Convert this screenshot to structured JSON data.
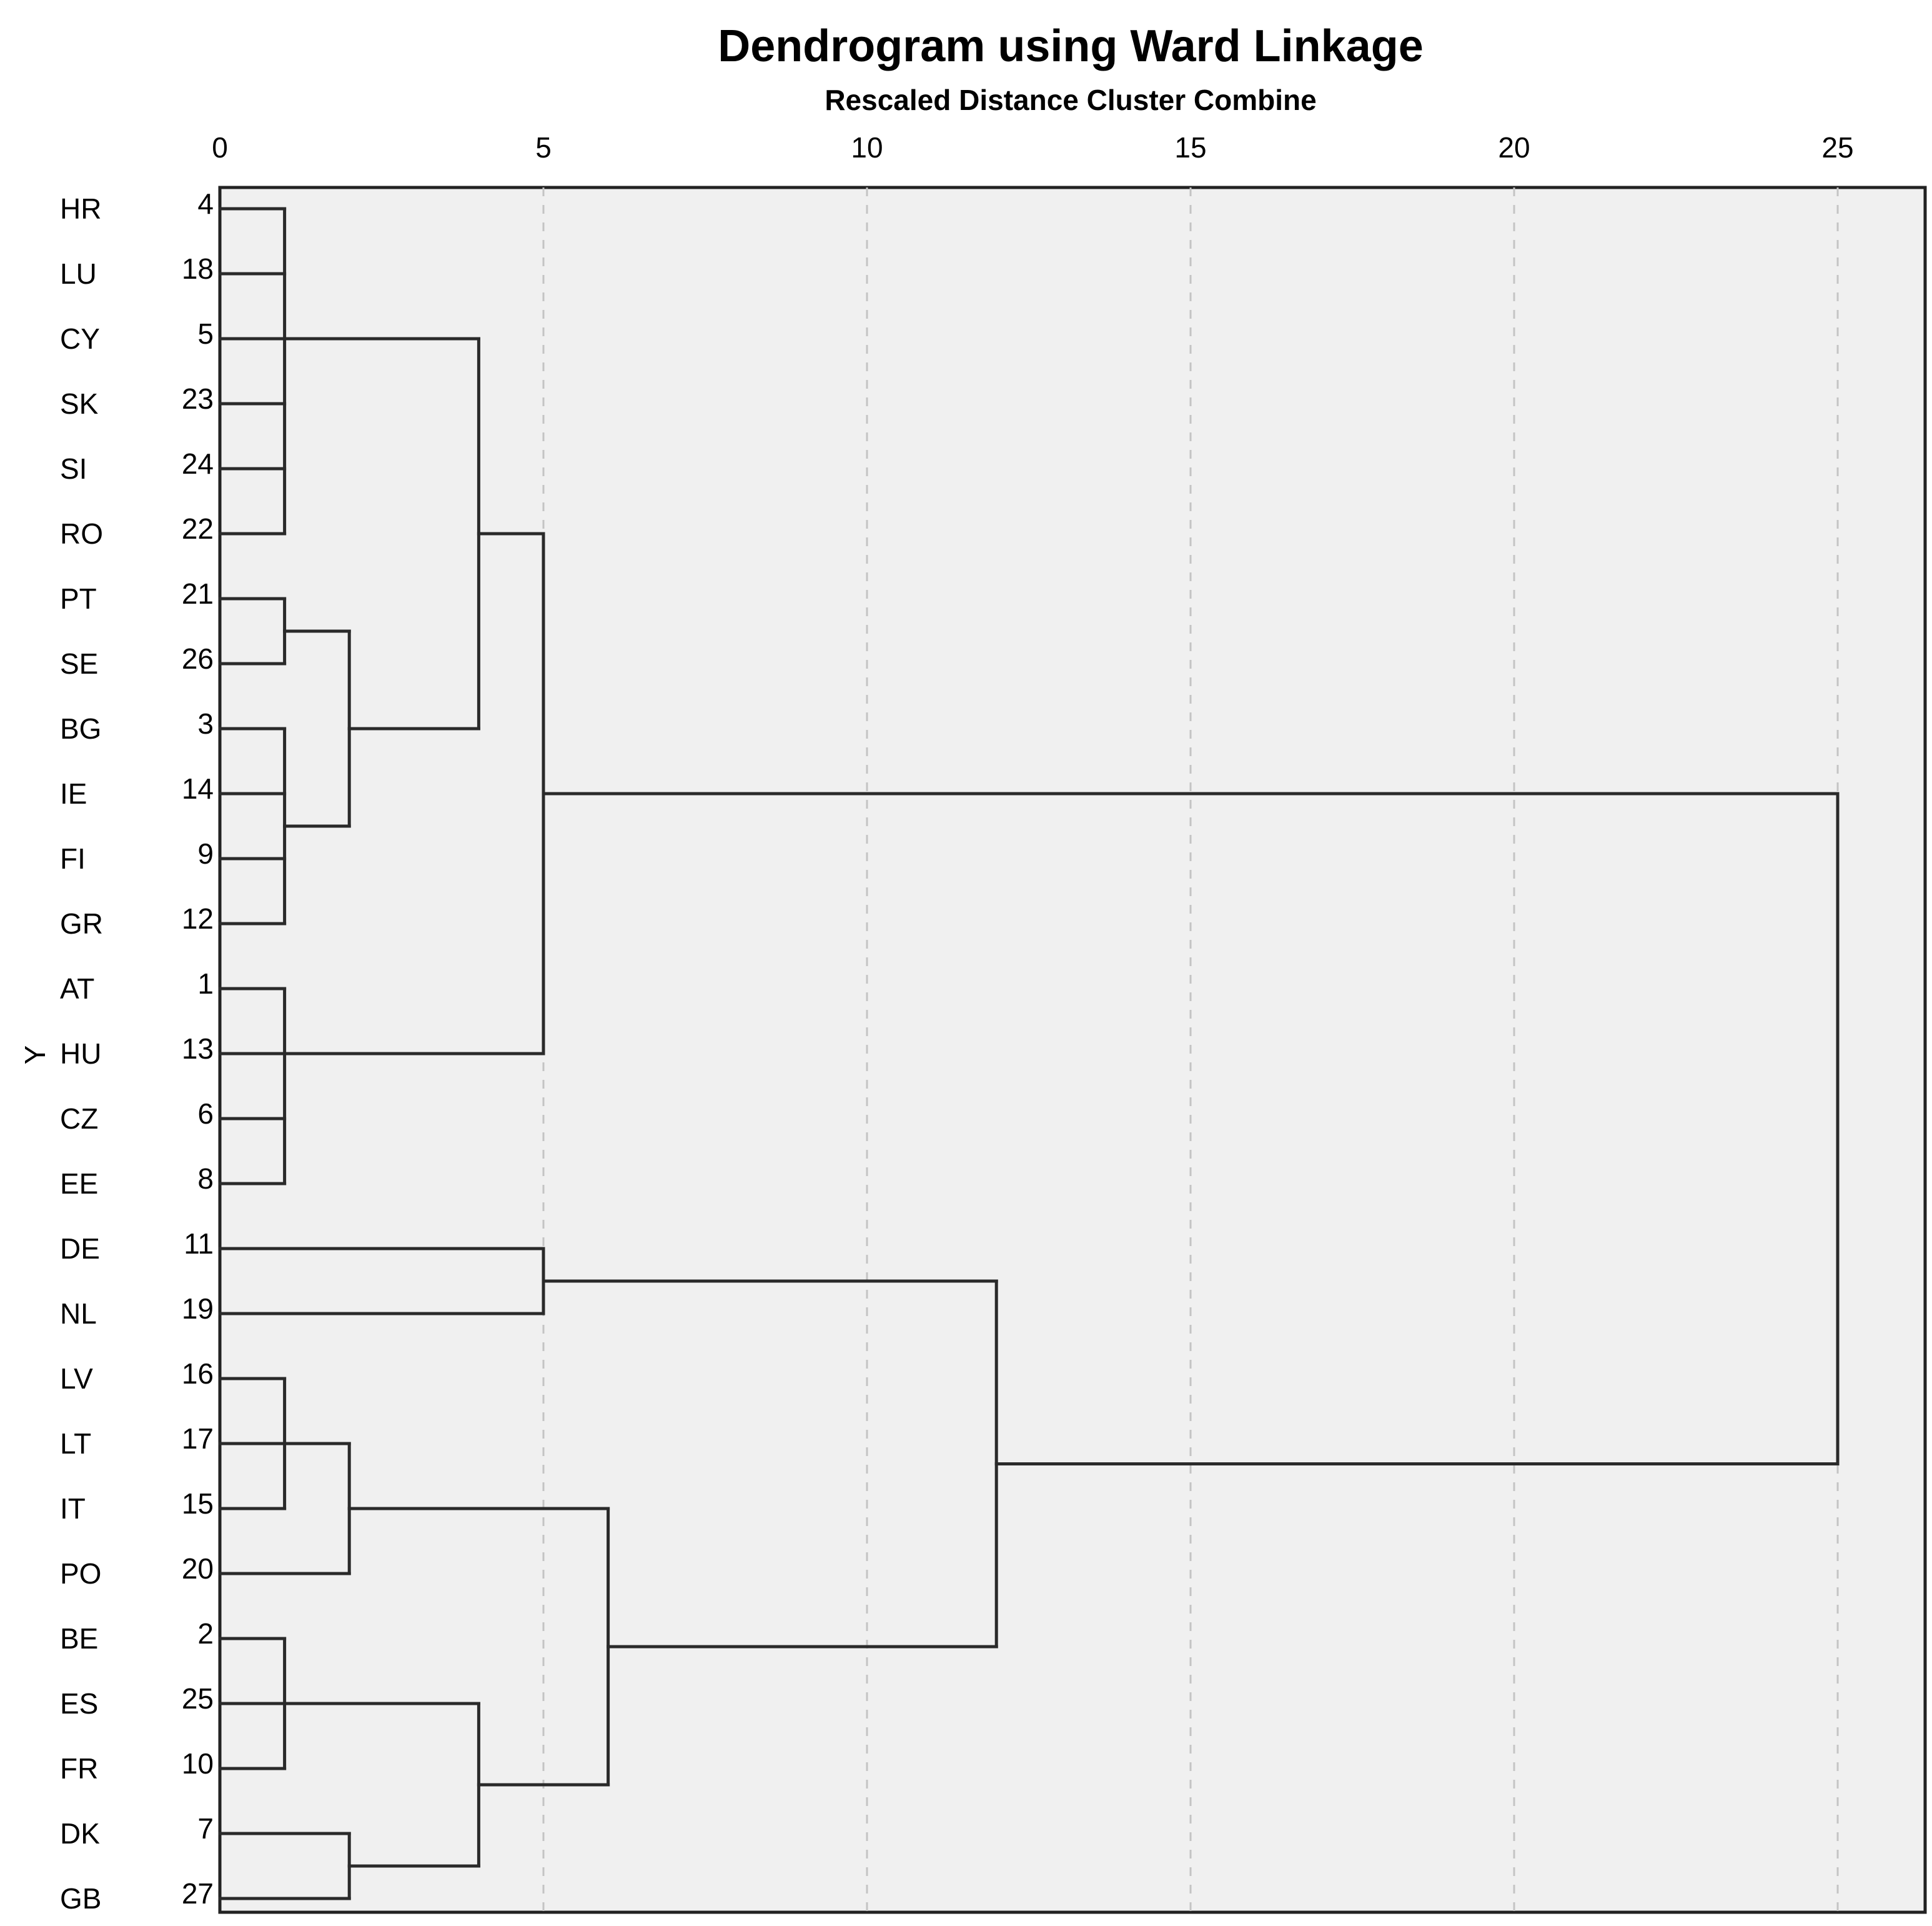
{
  "chart_data": {
    "type": "dendrogram",
    "title": "Dendrogram using Ward Linkage",
    "subtitle": "Rescaled Distance Cluster Combine",
    "xlabel": "",
    "ylabel": "Y",
    "xlim": [
      0,
      26.3
    ],
    "xticks": [
      0,
      5,
      10,
      15,
      20,
      25
    ],
    "grid": "vertical dashed",
    "leaves": [
      {
        "label": "HR",
        "id": "4"
      },
      {
        "label": "LU",
        "id": "18"
      },
      {
        "label": "CY",
        "id": "5"
      },
      {
        "label": "SK",
        "id": "23"
      },
      {
        "label": "SI",
        "id": "24"
      },
      {
        "label": "RO",
        "id": "22"
      },
      {
        "label": "PT",
        "id": "21"
      },
      {
        "label": "SE",
        "id": "26"
      },
      {
        "label": "BG",
        "id": "3"
      },
      {
        "label": "IE",
        "id": "14"
      },
      {
        "label": "FI",
        "id": "9"
      },
      {
        "label": "GR",
        "id": "12"
      },
      {
        "label": "AT",
        "id": "1"
      },
      {
        "label": "HU",
        "id": "13"
      },
      {
        "label": "CZ",
        "id": "6"
      },
      {
        "label": "EE",
        "id": "8"
      },
      {
        "label": "DE",
        "id": "11"
      },
      {
        "label": "NL",
        "id": "19"
      },
      {
        "label": "LV",
        "id": "16"
      },
      {
        "label": "LT",
        "id": "17"
      },
      {
        "label": "IT",
        "id": "15"
      },
      {
        "label": "PO",
        "id": "20"
      },
      {
        "label": "BE",
        "id": "2"
      },
      {
        "label": "ES",
        "id": "25"
      },
      {
        "label": "FR",
        "id": "10"
      },
      {
        "label": "DK",
        "id": "7"
      },
      {
        "label": "GB",
        "id": "27"
      }
    ],
    "merges": [
      {
        "members": [
          "HR",
          "LU",
          "CY",
          "SK",
          "SI",
          "RO"
        ],
        "distance": 1
      },
      {
        "members": [
          "PT",
          "SE"
        ],
        "distance": 1
      },
      {
        "members": [
          "BG",
          "IE",
          "FI",
          "GR"
        ],
        "distance": 1
      },
      {
        "members": [
          "AT",
          "HU",
          "CZ",
          "EE"
        ],
        "distance": 1
      },
      {
        "members": [
          "PT-SE",
          "BG-IE-FI-GR"
        ],
        "distance": 2
      },
      {
        "members": [
          "HR..RO",
          "PT..GR"
        ],
        "distance": 4
      },
      {
        "members": [
          "HR..GR",
          "AT-HU-CZ-EE"
        ],
        "distance": 5
      },
      {
        "members": [
          "DE",
          "NL"
        ],
        "distance": 5
      },
      {
        "members": [
          "LV",
          "IT"
        ],
        "distance": 1
      },
      {
        "members": [
          "LV-IT-LT",
          "PO"
        ],
        "distance": 2
      },
      {
        "members": [
          "BE",
          "FR"
        ],
        "distance": 1
      },
      {
        "members": [
          "DK",
          "GB"
        ],
        "distance": 2
      },
      {
        "members": [
          "BE-FR-ES",
          "DK-GB"
        ],
        "distance": 4
      },
      {
        "members": [
          "LV..PO",
          "BE..GB"
        ],
        "distance": 6
      },
      {
        "members": [
          "DE-NL",
          "LV..GB"
        ],
        "distance": 12
      },
      {
        "members": [
          "HR..EE",
          "DE..GB"
        ],
        "distance": 25
      }
    ]
  }
}
